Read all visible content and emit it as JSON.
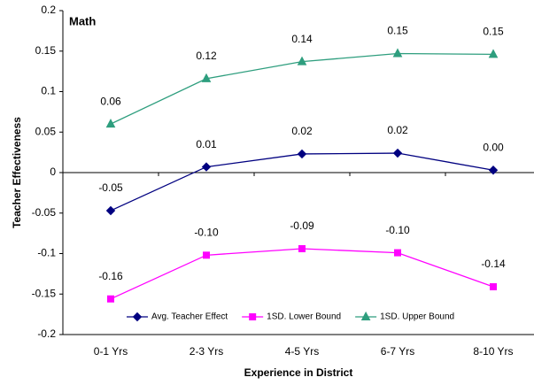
{
  "chart_data": {
    "type": "line",
    "title": "Math",
    "x_label": "Experience in District",
    "y_label": "Teacher Effectiveness",
    "categories": [
      "0-1 Yrs",
      "2-3 Yrs",
      "4-5 Yrs",
      "6-7 Yrs",
      "8-10 Yrs"
    ],
    "series": [
      {
        "name": "Avg. Teacher Effect",
        "color": "#000080",
        "marker": "diamond",
        "values": [
          -0.047,
          0.007,
          0.023,
          0.024,
          0.003
        ],
        "value_labels": [
          "-0.05",
          "0.01",
          "0.02",
          "0.02",
          "0.00"
        ]
      },
      {
        "name": "1SD. Lower Bound",
        "color": "#ff00ff",
        "marker": "square",
        "values": [
          -0.156,
          -0.102,
          -0.094,
          -0.099,
          -0.141
        ],
        "value_labels": [
          "-0.16",
          "-0.10",
          "-0.09",
          "-0.10",
          "-0.14"
        ]
      },
      {
        "name": "1SD. Upper Bound",
        "color": "#2e9e7e",
        "marker": "triangle",
        "values": [
          0.06,
          0.116,
          0.137,
          0.147,
          0.146
        ],
        "value_labels": [
          "0.06",
          "0.12",
          "0.14",
          "0.15",
          "0.15"
        ]
      }
    ],
    "ylim": [
      -0.2,
      0.2
    ],
    "yticks": [
      -0.2,
      -0.15,
      -0.1,
      -0.05,
      0,
      0.05,
      0.1,
      0.15,
      0.2
    ],
    "grid": false,
    "legend": "bottom"
  }
}
